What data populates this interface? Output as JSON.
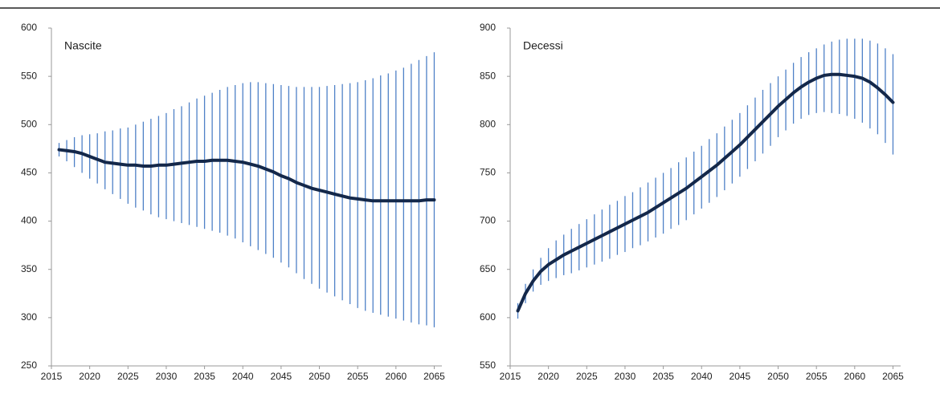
{
  "chart_data": [
    {
      "type": "line",
      "title": "Nascite",
      "x": [
        2016,
        2017,
        2018,
        2019,
        2020,
        2021,
        2022,
        2023,
        2024,
        2025,
        2026,
        2027,
        2028,
        2029,
        2030,
        2031,
        2032,
        2033,
        2034,
        2035,
        2036,
        2037,
        2038,
        2039,
        2040,
        2041,
        2042,
        2043,
        2044,
        2045,
        2046,
        2047,
        2048,
        2049,
        2050,
        2051,
        2052,
        2053,
        2054,
        2055,
        2056,
        2057,
        2058,
        2059,
        2060,
        2061,
        2062,
        2063,
        2064,
        2065
      ],
      "series": [
        {
          "color": "#14284a",
          "band_color": "#4f81c7",
          "values": [
            474,
            473,
            472,
            470,
            467,
            464,
            461,
            460,
            459,
            458,
            458,
            457,
            457,
            458,
            458,
            459,
            460,
            461,
            462,
            462,
            463,
            463,
            463,
            462,
            461,
            459,
            457,
            454,
            451,
            447,
            444,
            440,
            437,
            434,
            432,
            430,
            428,
            426,
            424,
            423,
            422,
            421,
            421,
            421,
            421,
            421,
            421,
            421,
            422,
            422
          ],
          "upper": [
            481,
            484,
            487,
            489,
            490,
            491,
            493,
            494,
            496,
            497,
            500,
            503,
            506,
            509,
            512,
            516,
            519,
            523,
            527,
            530,
            533,
            536,
            539,
            541,
            543,
            544,
            544,
            543,
            542,
            541,
            540,
            539,
            539,
            539,
            539,
            540,
            541,
            542,
            543,
            544,
            546,
            548,
            551,
            553,
            556,
            559,
            563,
            567,
            571,
            575
          ],
          "lower": [
            467,
            462,
            456,
            450,
            444,
            439,
            433,
            428,
            423,
            418,
            414,
            411,
            407,
            404,
            402,
            400,
            398,
            396,
            394,
            392,
            390,
            388,
            385,
            382,
            378,
            374,
            370,
            366,
            362,
            357,
            352,
            346,
            340,
            335,
            330,
            326,
            322,
            318,
            314,
            310,
            307,
            305,
            303,
            301,
            299,
            297,
            295,
            293,
            292,
            290
          ]
        }
      ],
      "xlim": [
        2015,
        2066
      ],
      "xticks": [
        2015,
        2020,
        2025,
        2030,
        2035,
        2040,
        2045,
        2050,
        2055,
        2060,
        2065
      ],
      "ylim": [
        250,
        600
      ],
      "yticks": [
        250,
        300,
        350,
        400,
        450,
        500,
        550,
        600
      ]
    },
    {
      "type": "line",
      "title": "Decessi",
      "x": [
        2016,
        2017,
        2018,
        2019,
        2020,
        2021,
        2022,
        2023,
        2024,
        2025,
        2026,
        2027,
        2028,
        2029,
        2030,
        2031,
        2032,
        2033,
        2034,
        2035,
        2036,
        2037,
        2038,
        2039,
        2040,
        2041,
        2042,
        2043,
        2044,
        2045,
        2046,
        2047,
        2048,
        2049,
        2050,
        2051,
        2052,
        2053,
        2054,
        2055,
        2056,
        2057,
        2058,
        2059,
        2060,
        2061,
        2062,
        2063,
        2064,
        2065
      ],
      "series": [
        {
          "color": "#14284a",
          "band_color": "#4f81c7",
          "values": [
            607,
            625,
            638,
            648,
            655,
            660,
            665,
            669,
            673,
            677,
            681,
            685,
            689,
            693,
            697,
            701,
            705,
            709,
            714,
            719,
            724,
            729,
            734,
            740,
            746,
            752,
            758,
            765,
            772,
            779,
            787,
            795,
            803,
            811,
            819,
            826,
            833,
            839,
            844,
            848,
            851,
            852,
            852,
            851,
            850,
            848,
            844,
            838,
            831,
            823
          ],
          "upper": [
            615,
            635,
            650,
            662,
            672,
            680,
            686,
            692,
            697,
            702,
            707,
            712,
            717,
            721,
            726,
            730,
            735,
            740,
            745,
            750,
            755,
            761,
            766,
            772,
            778,
            785,
            791,
            798,
            805,
            812,
            820,
            828,
            836,
            843,
            850,
            857,
            864,
            870,
            875,
            879,
            883,
            886,
            888,
            889,
            889,
            889,
            887,
            884,
            879,
            873
          ],
          "lower": [
            599,
            615,
            627,
            634,
            638,
            641,
            644,
            646,
            649,
            652,
            655,
            658,
            661,
            665,
            668,
            672,
            675,
            679,
            683,
            687,
            692,
            696,
            701,
            707,
            713,
            719,
            725,
            732,
            739,
            746,
            754,
            762,
            770,
            778,
            787,
            794,
            801,
            806,
            810,
            812,
            813,
            812,
            811,
            809,
            806,
            802,
            796,
            790,
            781,
            769
          ]
        }
      ],
      "xlim": [
        2015,
        2066
      ],
      "xticks": [
        2015,
        2020,
        2025,
        2030,
        2035,
        2040,
        2045,
        2050,
        2055,
        2060,
        2065
      ],
      "ylim": [
        550,
        900
      ],
      "yticks": [
        550,
        600,
        650,
        700,
        750,
        800,
        850,
        900
      ]
    }
  ]
}
